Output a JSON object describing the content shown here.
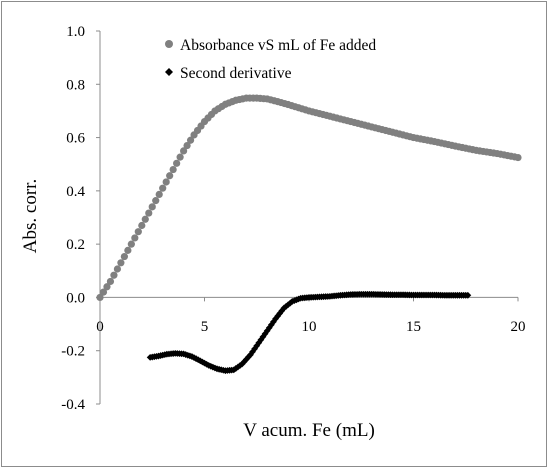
{
  "chart_data": {
    "type": "scatter",
    "xlabel": "V acum. Fe (mL)",
    "ylabel": "Abs. corr.",
    "xlim": [
      0,
      20
    ],
    "ylim": [
      -0.4,
      1.0
    ],
    "x_ticks": [
      "0",
      "5",
      "10",
      "15",
      "20"
    ],
    "y_ticks": [
      "1.0",
      "0.8",
      "0.6",
      "0.4",
      "0.2",
      "0.0",
      "-0.2",
      "-0.4"
    ],
    "grid": false,
    "legend_position": "top-right",
    "series": [
      {
        "name": "Absorbance vS mL of Fe added",
        "color": "#808080",
        "marker": "circle",
        "points": [
          [
            0.0,
            0.0
          ],
          [
            0.5,
            0.06
          ],
          [
            1.0,
            0.13
          ],
          [
            1.5,
            0.2
          ],
          [
            2.0,
            0.27
          ],
          [
            2.5,
            0.34
          ],
          [
            3.0,
            0.41
          ],
          [
            3.5,
            0.48
          ],
          [
            4.0,
            0.55
          ],
          [
            4.5,
            0.61
          ],
          [
            5.0,
            0.66
          ],
          [
            5.5,
            0.7
          ],
          [
            6.0,
            0.725
          ],
          [
            6.5,
            0.74
          ],
          [
            7.0,
            0.748
          ],
          [
            7.5,
            0.748
          ],
          [
            8.0,
            0.745
          ],
          [
            8.5,
            0.735
          ],
          [
            9.0,
            0.724
          ],
          [
            9.5,
            0.712
          ],
          [
            10.0,
            0.7
          ],
          [
            11.0,
            0.68
          ],
          [
            12.0,
            0.66
          ],
          [
            13.0,
            0.64
          ],
          [
            14.0,
            0.62
          ],
          [
            15.0,
            0.6
          ],
          [
            16.0,
            0.585
          ],
          [
            17.0,
            0.568
          ],
          [
            18.0,
            0.552
          ],
          [
            19.0,
            0.54
          ],
          [
            20.0,
            0.525
          ]
        ]
      },
      {
        "name": "Second derivative",
        "color": "#000000",
        "marker": "diamond",
        "points": [
          [
            2.4,
            -0.225
          ],
          [
            2.8,
            -0.22
          ],
          [
            3.2,
            -0.213
          ],
          [
            3.6,
            -0.21
          ],
          [
            4.0,
            -0.212
          ],
          [
            4.4,
            -0.222
          ],
          [
            4.8,
            -0.238
          ],
          [
            5.2,
            -0.255
          ],
          [
            5.6,
            -0.268
          ],
          [
            6.0,
            -0.275
          ],
          [
            6.4,
            -0.272
          ],
          [
            6.8,
            -0.25
          ],
          [
            7.2,
            -0.215
          ],
          [
            7.6,
            -0.17
          ],
          [
            8.0,
            -0.125
          ],
          [
            8.4,
            -0.08
          ],
          [
            8.8,
            -0.04
          ],
          [
            9.2,
            -0.015
          ],
          [
            9.6,
            -0.003
          ],
          [
            10.0,
            0.0
          ],
          [
            10.5,
            0.002
          ],
          [
            11.0,
            0.004
          ],
          [
            11.5,
            0.008
          ],
          [
            12.0,
            0.011
          ],
          [
            12.5,
            0.012
          ],
          [
            13.0,
            0.012
          ],
          [
            13.5,
            0.011
          ],
          [
            14.0,
            0.01
          ],
          [
            14.5,
            0.01
          ],
          [
            15.0,
            0.009
          ],
          [
            15.5,
            0.009
          ],
          [
            16.0,
            0.009
          ],
          [
            16.5,
            0.008
          ],
          [
            17.0,
            0.008
          ],
          [
            17.6,
            0.008
          ]
        ]
      }
    ]
  }
}
